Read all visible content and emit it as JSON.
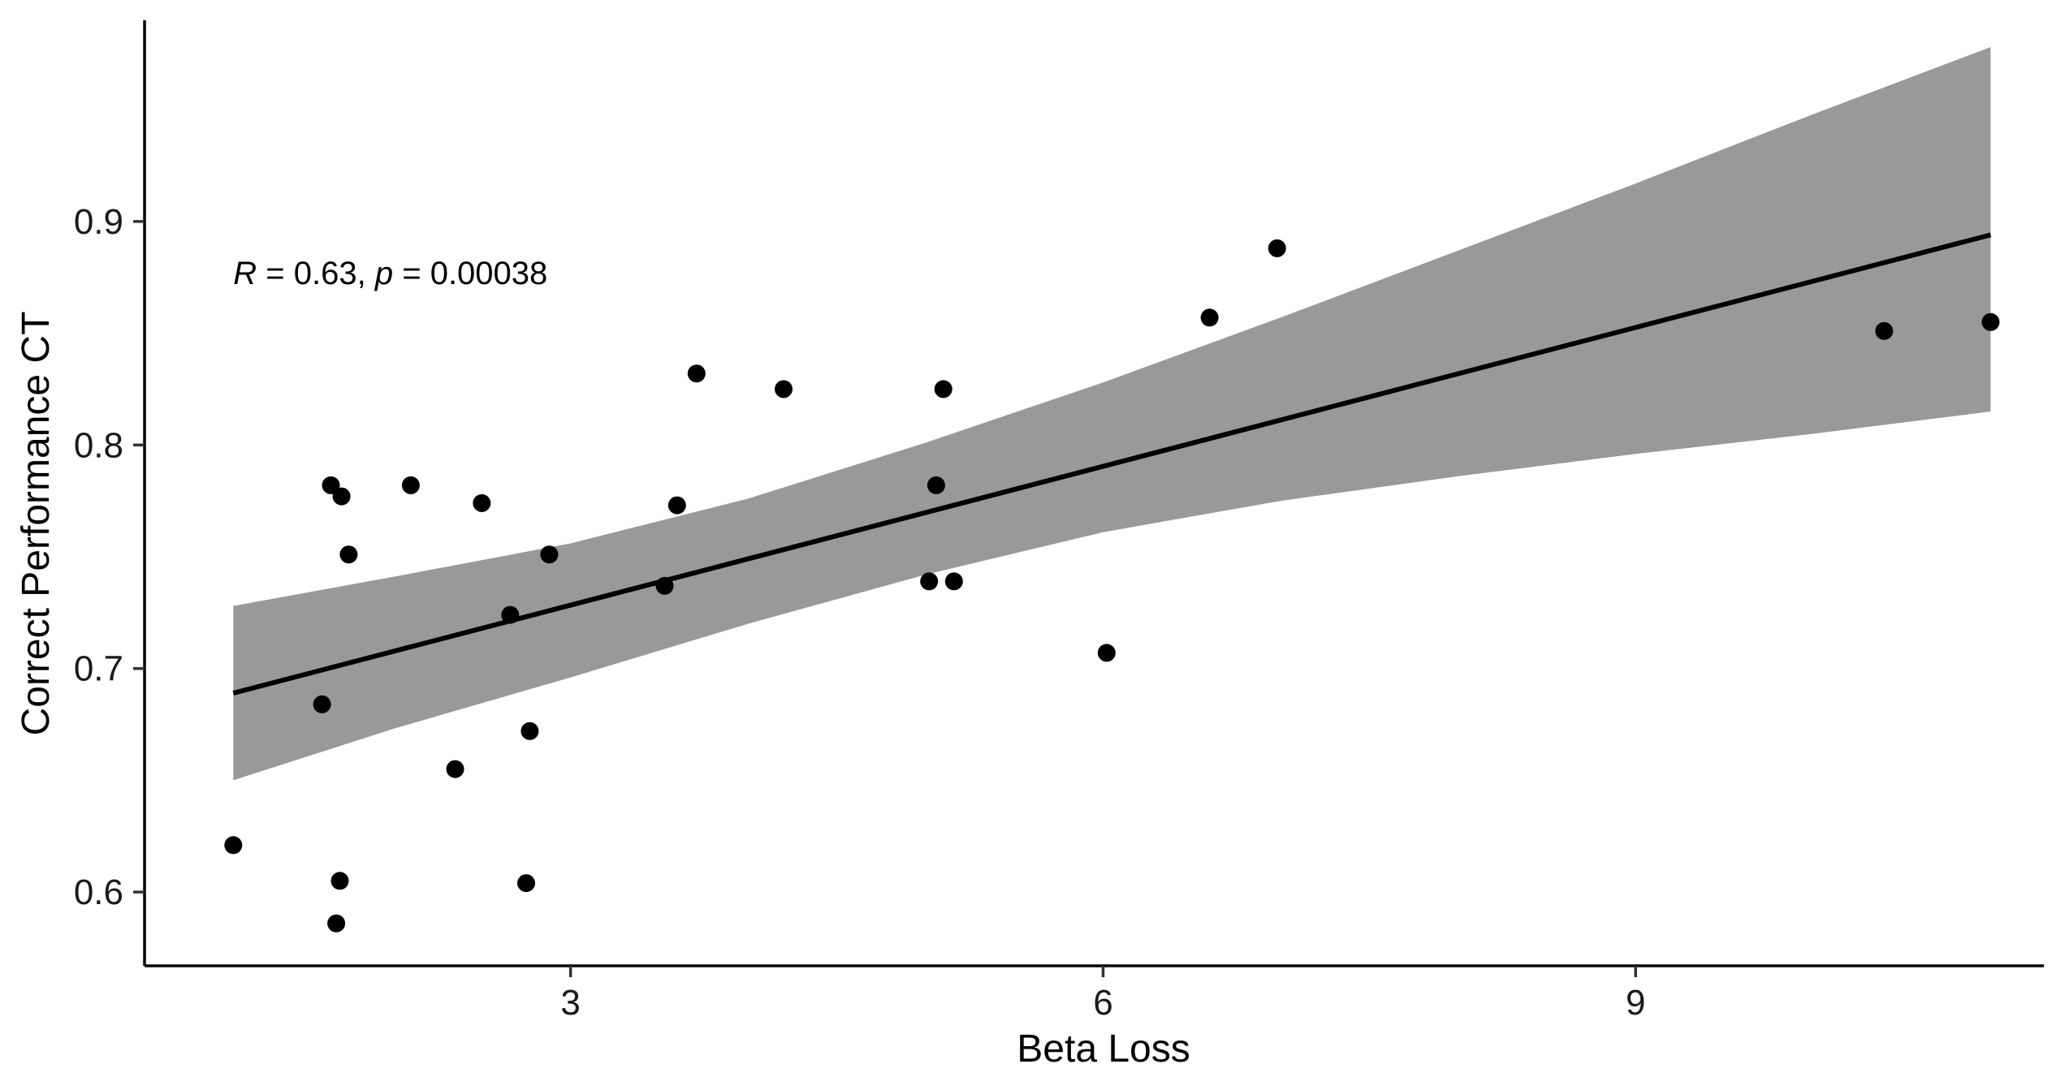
{
  "chart_data": {
    "type": "scatter",
    "title": "",
    "xlabel": "Beta Loss",
    "ylabel": "Correct Performance CT",
    "xlim": [
      0.6,
      11.3
    ],
    "ylim": [
      0.567,
      0.99
    ],
    "xticks": [
      3,
      6,
      9
    ],
    "yticks": [
      0.6,
      0.7,
      0.8,
      0.9
    ],
    "xtick_labels": [
      "3",
      "6",
      "9"
    ],
    "ytick_labels": [
      "0.6",
      "0.7",
      "0.8",
      "0.9"
    ],
    "grid": false,
    "legend": "none",
    "annotation": {
      "r_symbol": "R",
      "r_text": " = 0.63, ",
      "p_symbol": "p",
      "p_text": " = 0.00038",
      "x": 1.1,
      "y": 0.872
    },
    "points": [
      {
        "x": 1.1,
        "y": 0.621
      },
      {
        "x": 1.6,
        "y": 0.684
      },
      {
        "x": 1.65,
        "y": 0.782
      },
      {
        "x": 1.68,
        "y": 0.586
      },
      {
        "x": 1.7,
        "y": 0.605
      },
      {
        "x": 1.71,
        "y": 0.777
      },
      {
        "x": 1.75,
        "y": 0.751
      },
      {
        "x": 2.1,
        "y": 0.782
      },
      {
        "x": 2.35,
        "y": 0.655
      },
      {
        "x": 2.5,
        "y": 0.774
      },
      {
        "x": 2.66,
        "y": 0.724
      },
      {
        "x": 2.75,
        "y": 0.604
      },
      {
        "x": 2.77,
        "y": 0.672
      },
      {
        "x": 2.88,
        "y": 0.751
      },
      {
        "x": 3.53,
        "y": 0.737
      },
      {
        "x": 3.6,
        "y": 0.773
      },
      {
        "x": 3.71,
        "y": 0.832
      },
      {
        "x": 4.2,
        "y": 0.825
      },
      {
        "x": 5.02,
        "y": 0.739
      },
      {
        "x": 5.06,
        "y": 0.782
      },
      {
        "x": 5.1,
        "y": 0.825
      },
      {
        "x": 5.16,
        "y": 0.739
      },
      {
        "x": 6.02,
        "y": 0.707
      },
      {
        "x": 6.6,
        "y": 0.857
      },
      {
        "x": 6.98,
        "y": 0.888
      },
      {
        "x": 10.4,
        "y": 0.851
      },
      {
        "x": 11.0,
        "y": 0.855
      }
    ],
    "fit_line": {
      "x": [
        1.1,
        11.0
      ],
      "y": [
        0.689,
        0.894
      ]
    },
    "confidence_band": {
      "x": [
        1.1,
        2.0,
        3.0,
        4.0,
        5.0,
        6.0,
        7.0,
        8.0,
        9.0,
        10.0,
        11.0
      ],
      "upper": [
        0.728,
        0.741,
        0.756,
        0.776,
        0.801,
        0.828,
        0.857,
        0.887,
        0.917,
        0.948,
        0.978
      ],
      "lower": [
        0.65,
        0.673,
        0.696,
        0.72,
        0.742,
        0.761,
        0.775,
        0.786,
        0.796,
        0.805,
        0.815
      ]
    },
    "colors": {
      "points": "#000000",
      "fit_line": "#000000",
      "band": "#999999",
      "axis": "#000000"
    }
  }
}
